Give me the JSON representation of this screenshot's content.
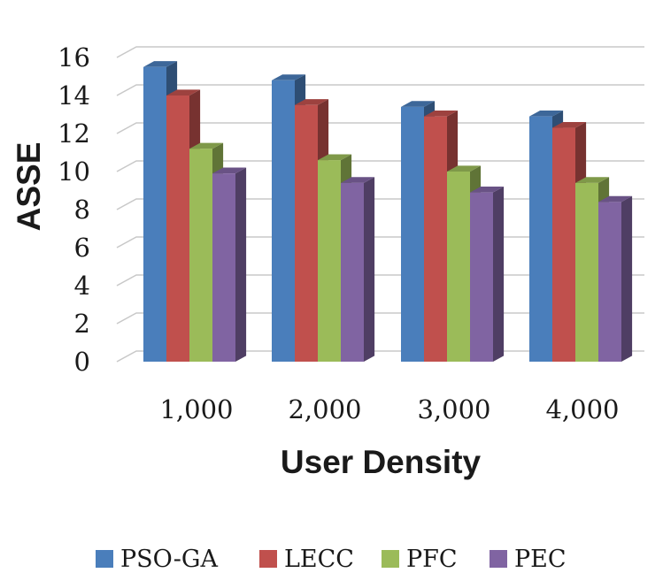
{
  "chart_data": {
    "type": "bar",
    "style": "3d-clustered-column",
    "title": "",
    "xlabel": "User Density",
    "ylabel": "ASSE",
    "categories": [
      "1,000",
      "2,000",
      "3,000",
      "4,000"
    ],
    "ylim": [
      0,
      16
    ],
    "yticks": [
      "0",
      "2",
      "4",
      "6",
      "8",
      "10",
      "12",
      "14",
      "16"
    ],
    "grid": true,
    "legend_position": "bottom",
    "series": [
      {
        "name": "PSO-GA",
        "values": [
          15.5,
          14.8,
          13.4,
          12.9
        ],
        "color": "#4a7ebb"
      },
      {
        "name": "LECC",
        "values": [
          14.0,
          13.5,
          12.9,
          12.3
        ],
        "color": "#c0504d"
      },
      {
        "name": "PFC",
        "values": [
          11.2,
          10.6,
          10.0,
          9.4
        ],
        "color": "#9bbb59"
      },
      {
        "name": "PEC",
        "values": [
          9.9,
          9.4,
          8.9,
          8.4
        ],
        "color": "#8064a2"
      }
    ]
  }
}
